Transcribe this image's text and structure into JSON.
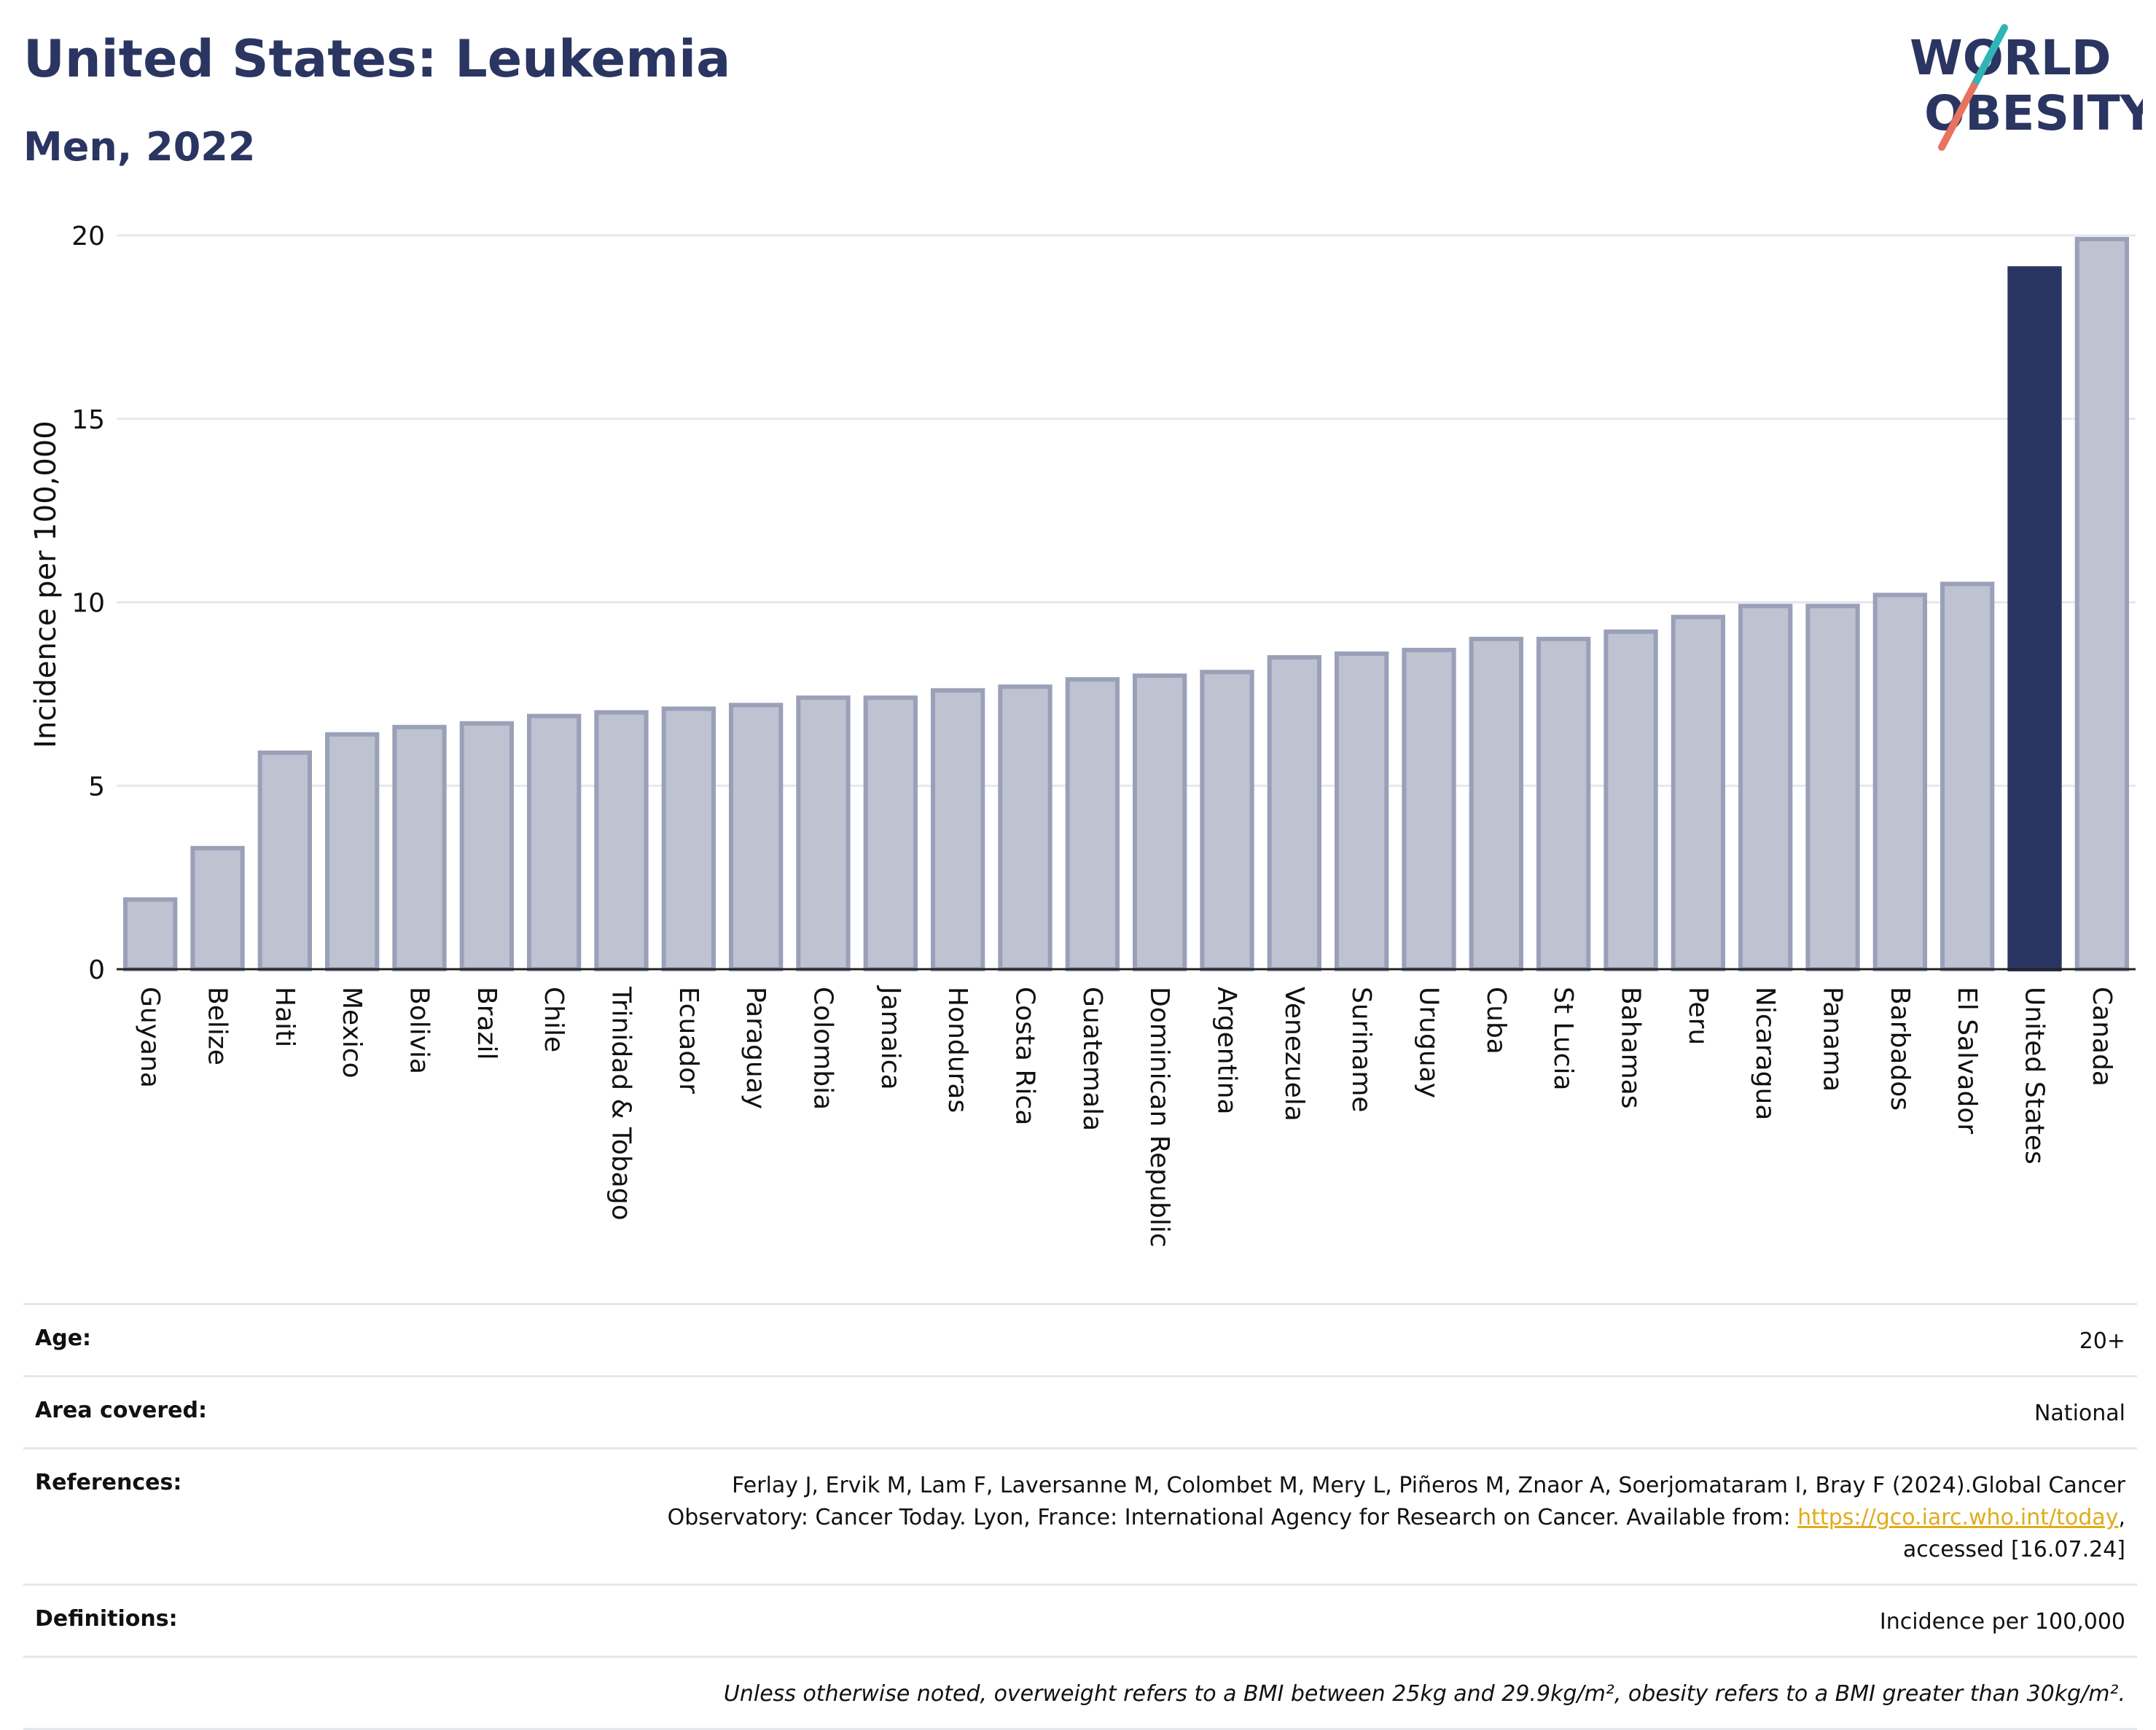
{
  "header": {
    "title": "United States: Leukemia",
    "subtitle": "Men, 2022",
    "logo_line1": "WORLD",
    "logo_line2": "OBESITY"
  },
  "chart_data": {
    "type": "bar",
    "title": "United States: Leukemia",
    "subtitle": "Men, 2022",
    "ylabel": "Incidence per 100,000",
    "xlabel": "",
    "ylim": [
      0,
      20
    ],
    "yticks": [
      0,
      5,
      10,
      15,
      20
    ],
    "grid": true,
    "highlight": "United States",
    "colors": {
      "bar": "#bec2d1",
      "bar_edge": "#9aa0b8",
      "highlight": "#2b3561"
    },
    "categories": [
      "Guyana",
      "Belize",
      "Haiti",
      "Mexico",
      "Bolivia",
      "Brazil",
      "Chile",
      "Trinidad & Tobago",
      "Ecuador",
      "Paraguay",
      "Colombia",
      "Jamaica",
      "Honduras",
      "Costa Rica",
      "Guatemala",
      "Dominican Republic",
      "Argentina",
      "Venezuela",
      "Suriname",
      "Uruguay",
      "Cuba",
      "St Lucia",
      "Bahamas",
      "Peru",
      "Nicaragua",
      "Panama",
      "Barbados",
      "El Salvador",
      "United States",
      "Canada"
    ],
    "values": [
      1.9,
      3.3,
      5.9,
      6.4,
      6.6,
      6.7,
      6.9,
      7.0,
      7.1,
      7.2,
      7.4,
      7.4,
      7.6,
      7.7,
      7.9,
      8.0,
      8.1,
      8.5,
      8.6,
      8.7,
      9.0,
      9.0,
      9.2,
      9.6,
      9.9,
      9.9,
      10.2,
      10.5,
      19.1,
      19.9
    ]
  },
  "info": {
    "age_label": "Age:",
    "age_value": "20+",
    "area_label": "Area covered:",
    "area_value": "National",
    "references_label": "References:",
    "references_line1": "Ferlay J, Ervik M, Lam F, Laversanne M, Colombet M, Mery L, Piñeros M, Znaor A, Soerjomataram I, Bray F (2024).Global Cancer",
    "references_line2": "Observatory: Cancer Today. Lyon, France: International Agency for Research on Cancer. Available from: ",
    "references_link": "https://gco.iarc.who.int/today",
    "references_line2_end": ",",
    "references_line3": "accessed [16.07.24]",
    "definitions_label": "Definitions:",
    "definitions_value": "Incidence per 100,000",
    "note": "Unless otherwise noted, overweight refers to a BMI between 25kg and 29.9kg/m², obesity refers to a BMI greater than 30kg/m²."
  }
}
